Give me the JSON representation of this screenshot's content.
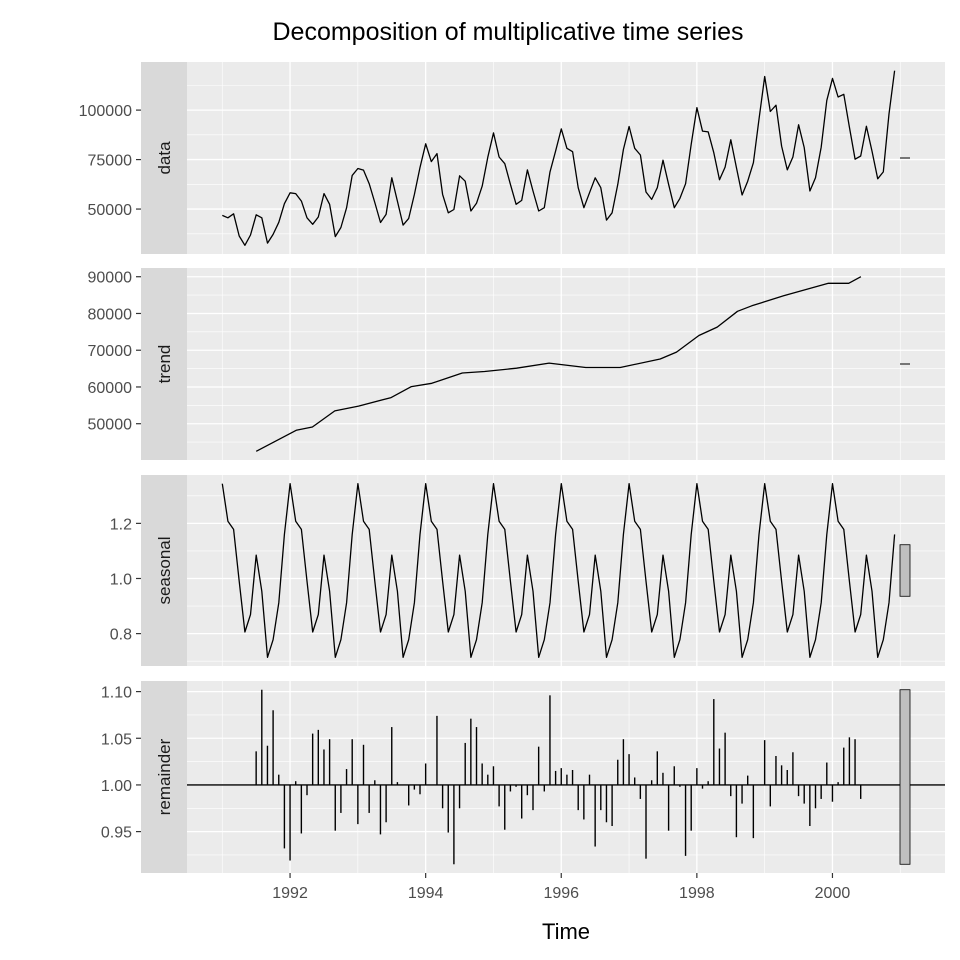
{
  "chart_data": {
    "type": "line",
    "title": "Decomposition of multiplicative time series",
    "xlabel": "Time",
    "xlim": [
      1990.48,
      2001.66
    ],
    "x_ticks": [
      1992,
      1994,
      1996,
      1998,
      2000
    ],
    "x_tick_labels": [
      "1992",
      "1994",
      "1996",
      "1998",
      "2000"
    ],
    "grid": true,
    "panels": [
      {
        "name": "data",
        "label": "data",
        "type": "line",
        "start": 1991.0,
        "frequency": 12,
        "ticks": [
          50000,
          75000,
          100000
        ],
        "tick_labels": [
          "50000",
          "75000",
          "100000"
        ],
        "values": [
          46800,
          45600,
          47600,
          36400,
          31700,
          36900,
          47100,
          45600,
          32800,
          37200,
          43300,
          52700,
          58200,
          57800,
          54000,
          45600,
          42300,
          46000,
          57800,
          52400,
          36100,
          40700,
          50700,
          67000,
          70500,
          69700,
          62800,
          53300,
          43200,
          47300,
          65800,
          54000,
          41900,
          45300,
          57400,
          71000,
          83000,
          74000,
          78000,
          57400,
          48100,
          49800,
          66800,
          64100,
          49000,
          52900,
          61600,
          76200,
          88500,
          76300,
          72900,
          62500,
          52400,
          54400,
          69800,
          59100,
          49000,
          50700,
          68800,
          79300,
          90500,
          80700,
          79000,
          60800,
          50700,
          58200,
          65800,
          60800,
          44400,
          48100,
          62500,
          80100,
          91700,
          80700,
          77300,
          58600,
          54900,
          60800,
          74700,
          62500,
          50700,
          55400,
          62800,
          82700,
          101200,
          89400,
          89000,
          78500,
          64800,
          71200,
          85000,
          71000,
          57100,
          64100,
          73400,
          95400,
          117000,
          99300,
          102500,
          81800,
          69800,
          76300,
          92600,
          81100,
          59100,
          65800,
          81300,
          104900,
          116000,
          106600,
          108000,
          91400,
          75200,
          76800,
          91800,
          79300,
          65300,
          68800,
          98100,
          119900
        ]
      },
      {
        "name": "trend",
        "label": "trend",
        "type": "line",
        "ticks": [
          50000,
          60000,
          70000,
          80000,
          90000
        ],
        "tick_labels": [
          "50000",
          "60000",
          "70000",
          "80000",
          "90000"
        ],
        "x": [
          1991.5,
          1992.09,
          1992.33,
          1992.66,
          1993.01,
          1993.49,
          1993.79,
          1994.09,
          1994.54,
          1994.87,
          1995.34,
          1995.82,
          1996.36,
          1996.87,
          1997.46,
          1997.7,
          1998.03,
          1998.3,
          1998.6,
          1998.81,
          1999.28,
          1999.94,
          2000.24,
          2000.42
        ],
        "values": [
          42500,
          48200,
          49100,
          53500,
          54800,
          57100,
          60100,
          61000,
          63800,
          64200,
          65100,
          66500,
          65300,
          65300,
          67600,
          69500,
          74000,
          76300,
          80600,
          82100,
          84800,
          88200,
          88200,
          90000
        ]
      },
      {
        "name": "seasonal",
        "label": "seasonal",
        "type": "line",
        "start": 1991.0,
        "frequency": 12,
        "length": 120,
        "ticks": [
          0.8,
          1.0,
          1.2
        ],
        "tick_labels": [
          "0.8",
          "1.0",
          "1.2"
        ],
        "pattern": [
          1.344,
          1.208,
          1.178,
          0.99,
          0.806,
          0.869,
          1.085,
          0.954,
          0.714,
          0.778,
          0.912,
          1.16
        ]
      },
      {
        "name": "remainder",
        "label": "remainder",
        "type": "bar",
        "baseline": 1.0,
        "start": 1991.5,
        "frequency": 12,
        "ticks": [
          0.95,
          1.0,
          1.05,
          1.1
        ],
        "tick_labels": [
          "0.95",
          "1.00",
          "1.05",
          "1.10"
        ],
        "values": [
          1.036,
          1.102,
          1.042,
          1.08,
          1.011,
          0.932,
          0.919,
          1.004,
          0.948,
          0.989,
          1.055,
          1.059,
          1.038,
          1.049,
          0.951,
          0.97,
          1.017,
          1.049,
          0.958,
          1.043,
          0.97,
          1.005,
          0.947,
          0.96,
          1.062,
          1.003,
          1.0,
          0.978,
          0.995,
          0.99,
          1.023,
          1.0,
          1.074,
          0.975,
          0.949,
          0.915,
          0.975,
          1.045,
          1.071,
          1.062,
          1.023,
          1.011,
          1.02,
          0.977,
          0.952,
          0.993,
          0.998,
          0.964,
          0.989,
          0.973,
          1.041,
          0.993,
          1.096,
          1.015,
          1.018,
          1.011,
          1.016,
          0.973,
          0.963,
          1.011,
          0.934,
          0.973,
          0.96,
          0.956,
          1.027,
          1.049,
          1.033,
          1.008,
          0.985,
          0.921,
          1.005,
          1.036,
          1.013,
          0.951,
          1.02,
          0.998,
          0.924,
          0.951,
          1.018,
          0.996,
          1.004,
          1.092,
          1.039,
          1.056,
          0.988,
          0.944,
          0.98,
          1.01,
          0.943,
          1.0,
          1.048,
          0.977,
          1.031,
          1.021,
          1.016,
          1.035,
          0.988,
          0.98,
          0.956,
          0.975,
          0.985,
          1.024,
          0.982,
          1.003,
          1.04,
          1.051,
          1.049,
          0.985
        ]
      }
    ],
    "range_bar_x": 2001.07,
    "colors": {
      "panel_bg": "#ebebeb",
      "strip_bg": "#d9d9d9",
      "grid": "#ffffff",
      "line": "#000000",
      "range_bar_fill": "#bfbfbf"
    }
  }
}
